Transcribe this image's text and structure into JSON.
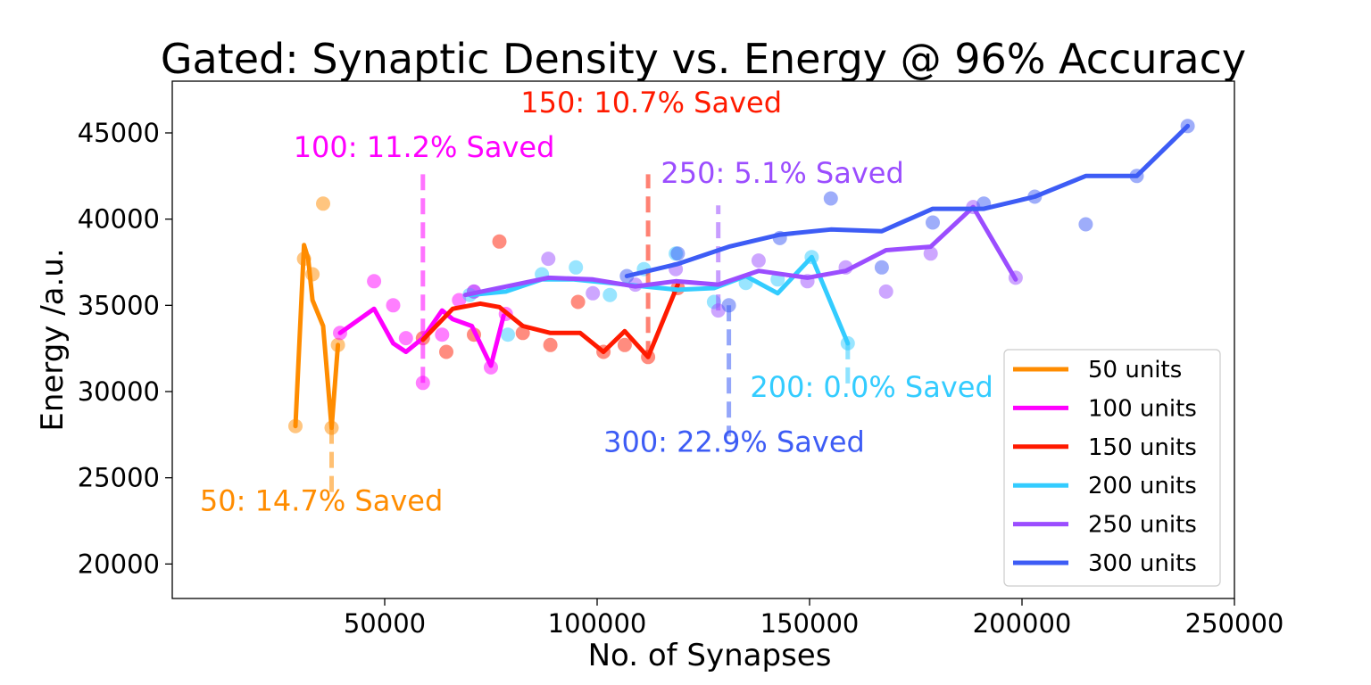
{
  "chart_data": {
    "type": "line",
    "title": "Gated: Synaptic Density vs. Energy @ 96% Accuracy",
    "xlabel": "No. of Synapses",
    "ylabel": "Energy /a.u.",
    "xlim": [
      0,
      250000
    ],
    "ylim": [
      18000,
      48000
    ],
    "xticks": [
      50000,
      100000,
      150000,
      200000,
      250000
    ],
    "yticks": [
      20000,
      25000,
      30000,
      35000,
      40000,
      45000
    ],
    "grid": false,
    "legend_position": "bottom-right",
    "series": [
      {
        "name": "50 units",
        "color": "#ff8c00",
        "line": [
          [
            29000,
            28000
          ],
          [
            31000,
            38500
          ],
          [
            32000,
            37700
          ],
          [
            33000,
            35300
          ],
          [
            35500,
            33800
          ],
          [
            37500,
            27900
          ],
          [
            39000,
            32700
          ]
        ],
        "points": [
          [
            29000,
            28000
          ],
          [
            31000,
            37700
          ],
          [
            33000,
            36800
          ],
          [
            35500,
            40900
          ],
          [
            37500,
            27900
          ],
          [
            39000,
            32700
          ]
        ]
      },
      {
        "name": "100 units",
        "color": "#ff00ff",
        "line": [
          [
            39500,
            33400
          ],
          [
            47500,
            34800
          ],
          [
            52000,
            32800
          ],
          [
            55000,
            32300
          ],
          [
            59000,
            33100
          ],
          [
            63500,
            34700
          ],
          [
            66000,
            34200
          ],
          [
            70500,
            33800
          ],
          [
            75000,
            31500
          ],
          [
            78000,
            34400
          ]
        ],
        "points": [
          [
            39500,
            33400
          ],
          [
            47500,
            36400
          ],
          [
            52000,
            35000
          ],
          [
            55000,
            33100
          ],
          [
            59000,
            30500
          ],
          [
            63500,
            33300
          ],
          [
            67500,
            35300
          ],
          [
            71000,
            35800
          ],
          [
            75000,
            31400
          ],
          [
            78500,
            34500
          ]
        ]
      },
      {
        "name": "150 units",
        "color": "#ff1a00",
        "line": [
          [
            59000,
            33000
          ],
          [
            66000,
            34800
          ],
          [
            72500,
            35100
          ],
          [
            77000,
            34900
          ],
          [
            82500,
            33800
          ],
          [
            89000,
            33400
          ],
          [
            96000,
            33400
          ],
          [
            101500,
            32300
          ],
          [
            106500,
            33500
          ],
          [
            112000,
            32000
          ],
          [
            119000,
            36200
          ]
        ],
        "points": [
          [
            59000,
            33100
          ],
          [
            64500,
            32300
          ],
          [
            71000,
            33300
          ],
          [
            77000,
            38700
          ],
          [
            82500,
            33400
          ],
          [
            89000,
            32700
          ],
          [
            95500,
            35200
          ],
          [
            101500,
            32300
          ],
          [
            106500,
            32700
          ],
          [
            112000,
            32000
          ],
          [
            119000,
            36000
          ]
        ]
      },
      {
        "name": "200 units",
        "color": "#33ccff",
        "line": [
          [
            70000,
            35600
          ],
          [
            78500,
            35800
          ],
          [
            87000,
            36500
          ],
          [
            94500,
            36500
          ],
          [
            103000,
            36300
          ],
          [
            111000,
            36100
          ],
          [
            119000,
            35900
          ],
          [
            127500,
            36000
          ],
          [
            135000,
            36700
          ],
          [
            142500,
            35700
          ],
          [
            150500,
            37800
          ],
          [
            159000,
            32800
          ]
        ],
        "points": [
          [
            70000,
            35600
          ],
          [
            79000,
            33300
          ],
          [
            87000,
            36800
          ],
          [
            95000,
            37200
          ],
          [
            103000,
            35600
          ],
          [
            111000,
            37100
          ],
          [
            118500,
            38000
          ],
          [
            127500,
            35200
          ],
          [
            135000,
            36300
          ],
          [
            142500,
            36500
          ],
          [
            150500,
            37800
          ],
          [
            159000,
            32800
          ]
        ]
      },
      {
        "name": "250 units",
        "color": "#9b4dff",
        "line": [
          [
            69000,
            35600
          ],
          [
            88500,
            36600
          ],
          [
            99000,
            36500
          ],
          [
            109000,
            36100
          ],
          [
            118500,
            36400
          ],
          [
            128500,
            36200
          ],
          [
            138000,
            37000
          ],
          [
            149500,
            36600
          ],
          [
            158500,
            37000
          ],
          [
            168000,
            38200
          ],
          [
            178500,
            38400
          ],
          [
            188500,
            40700
          ],
          [
            198500,
            36500
          ]
        ],
        "points": [
          [
            71000,
            35800
          ],
          [
            88500,
            37700
          ],
          [
            99000,
            35700
          ],
          [
            109000,
            36200
          ],
          [
            118500,
            37100
          ],
          [
            128500,
            34700
          ],
          [
            138000,
            37600
          ],
          [
            149500,
            36400
          ],
          [
            158500,
            37200
          ],
          [
            168000,
            35800
          ],
          [
            178500,
            38000
          ],
          [
            188500,
            40700
          ],
          [
            198500,
            36600
          ]
        ]
      },
      {
        "name": "300 units",
        "color": "#3d5cf5",
        "line": [
          [
            107000,
            36700
          ],
          [
            119000,
            37400
          ],
          [
            131000,
            38400
          ],
          [
            143000,
            39100
          ],
          [
            155000,
            39400
          ],
          [
            167000,
            39300
          ],
          [
            179000,
            40600
          ],
          [
            191000,
            40600
          ],
          [
            203000,
            41300
          ],
          [
            215000,
            42500
          ],
          [
            227000,
            42500
          ],
          [
            239000,
            45400
          ]
        ],
        "points": [
          [
            107000,
            36700
          ],
          [
            119000,
            38000
          ],
          [
            131000,
            35000
          ],
          [
            143000,
            38900
          ],
          [
            155000,
            41200
          ],
          [
            167000,
            37200
          ],
          [
            179000,
            39800
          ],
          [
            191000,
            40900
          ],
          [
            203000,
            41300
          ],
          [
            215000,
            39700
          ],
          [
            227000,
            42500
          ],
          [
            239000,
            45400
          ]
        ]
      }
    ],
    "annotations": [
      {
        "text": "50: 14.7% Saved",
        "color": "#ff8c00",
        "x": 37500,
        "y_from": 27900,
        "y_to": 24000,
        "label_x": 6500,
        "label_y": 23100
      },
      {
        "text": "100: 11.2% Saved",
        "color": "#ff00ff",
        "x": 59000,
        "y_from": 30500,
        "y_to": 42600,
        "label_x": 28500,
        "label_y": 43600
      },
      {
        "text": "150: 10.7% Saved",
        "color": "#ff1a00",
        "x": 112000,
        "y_from": 32000,
        "y_to": 42600,
        "label_x": 82000,
        "label_y": 46200
      },
      {
        "text": "250: 5.1% Saved",
        "color": "#9b4dff",
        "x": 128500,
        "y_from": 34700,
        "y_to": 40800,
        "label_x": 115000,
        "label_y": 42100
      },
      {
        "text": "200: 0.0% Saved",
        "color": "#33ccff",
        "x": 159000,
        "y_from": 32800,
        "y_to": 30400,
        "label_x": 136000,
        "label_y": 29700
      },
      {
        "text": "300: 22.9% Saved",
        "color": "#3d5cf5",
        "x": 131000,
        "y_from": 35000,
        "y_to": 27400,
        "label_x": 101500,
        "label_y": 26500
      }
    ]
  }
}
